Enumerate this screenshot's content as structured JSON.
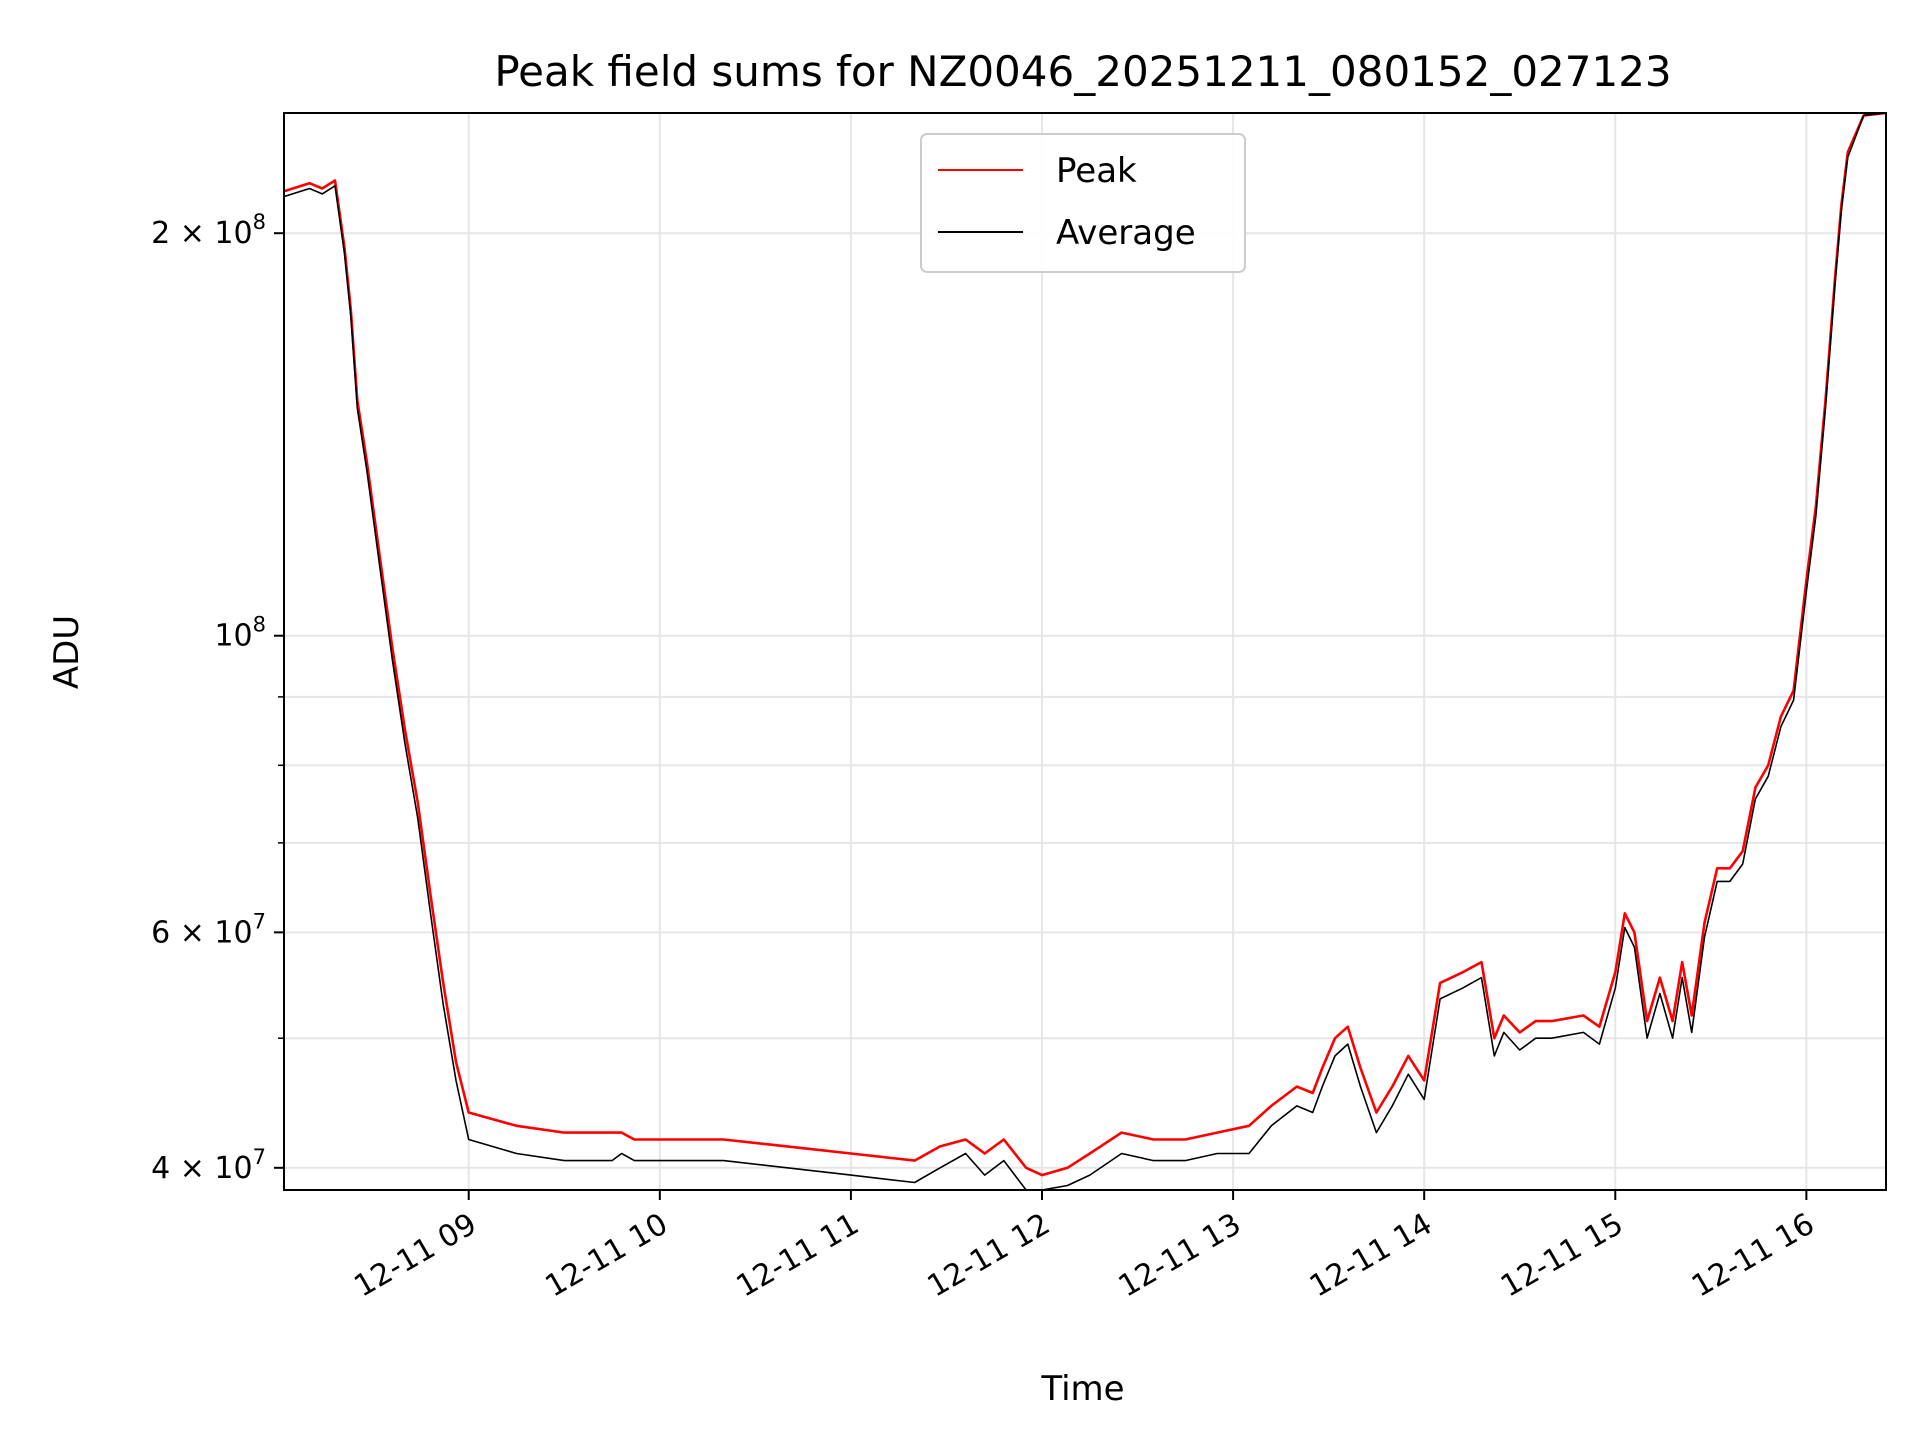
{
  "chart_data": {
    "type": "line",
    "title": "Peak field sums for NZ0046_20251211_080152_027123",
    "xlabel": "Time",
    "ylabel": "ADU",
    "x_axis": "date",
    "y_scale": "log",
    "xlim": [
      "2025-12-11 08:02",
      "2025-12-11 16:25"
    ],
    "ylim": [
      38500000,
      246000000
    ],
    "x_ticks": [
      {
        "value": "2025-12-11 09:00",
        "label": "12-11 09"
      },
      {
        "value": "2025-12-11 10:00",
        "label": "12-11 10"
      },
      {
        "value": "2025-12-11 11:00",
        "label": "12-11 11"
      },
      {
        "value": "2025-12-11 12:00",
        "label": "12-11 12"
      },
      {
        "value": "2025-12-11 13:00",
        "label": "12-11 13"
      },
      {
        "value": "2025-12-11 14:00",
        "label": "12-11 14"
      },
      {
        "value": "2025-12-11 15:00",
        "label": "12-11 15"
      },
      {
        "value": "2025-12-11 16:00",
        "label": "12-11 16"
      }
    ],
    "y_major_ticks": [
      {
        "value": 40000000,
        "base": "4 × 10",
        "exp": "7"
      },
      {
        "value": 60000000,
        "base": "6 × 10",
        "exp": "7"
      },
      {
        "value": 100000000,
        "base": "10",
        "exp": "8"
      },
      {
        "value": 200000000,
        "base": "2 × 10",
        "exp": "8"
      }
    ],
    "y_minor_ticks": [
      50000000,
      70000000,
      80000000,
      90000000
    ],
    "grid": true,
    "legend_position": "upper-center",
    "x": [
      "2025-12-11 08:02",
      "2025-12-11 08:10",
      "2025-12-11 08:14",
      "2025-12-11 08:18",
      "2025-12-11 08:21",
      "2025-12-11 08:23",
      "2025-12-11 08:25",
      "2025-12-11 08:28",
      "2025-12-11 08:32",
      "2025-12-11 08:36",
      "2025-12-11 08:40",
      "2025-12-11 08:44",
      "2025-12-11 08:48",
      "2025-12-11 08:52",
      "2025-12-11 08:56",
      "2025-12-11 09:00",
      "2025-12-11 09:15",
      "2025-12-11 09:30",
      "2025-12-11 09:45",
      "2025-12-11 09:48",
      "2025-12-11 09:52",
      "2025-12-11 10:00",
      "2025-12-11 10:20",
      "2025-12-11 10:40",
      "2025-12-11 11:00",
      "2025-12-11 11:20",
      "2025-12-11 11:28",
      "2025-12-11 11:36",
      "2025-12-11 11:42",
      "2025-12-11 11:48",
      "2025-12-11 11:55",
      "2025-12-11 12:00",
      "2025-12-11 12:08",
      "2025-12-11 12:15",
      "2025-12-11 12:25",
      "2025-12-11 12:35",
      "2025-12-11 12:45",
      "2025-12-11 12:55",
      "2025-12-11 13:05",
      "2025-12-11 13:12",
      "2025-12-11 13:20",
      "2025-12-11 13:25",
      "2025-12-11 13:28",
      "2025-12-11 13:32",
      "2025-12-11 13:36",
      "2025-12-11 13:40",
      "2025-12-11 13:45",
      "2025-12-11 13:50",
      "2025-12-11 13:55",
      "2025-12-11 14:00",
      "2025-12-11 14:05",
      "2025-12-11 14:12",
      "2025-12-11 14:18",
      "2025-12-11 14:22",
      "2025-12-11 14:25",
      "2025-12-11 14:30",
      "2025-12-11 14:35",
      "2025-12-11 14:40",
      "2025-12-11 14:50",
      "2025-12-11 14:55",
      "2025-12-11 15:00",
      "2025-12-11 15:03",
      "2025-12-11 15:06",
      "2025-12-11 15:10",
      "2025-12-11 15:14",
      "2025-12-11 15:18",
      "2025-12-11 15:21",
      "2025-12-11 15:24",
      "2025-12-11 15:28",
      "2025-12-11 15:32",
      "2025-12-11 15:36",
      "2025-12-11 15:40",
      "2025-12-11 15:44",
      "2025-12-11 15:48",
      "2025-12-11 15:52",
      "2025-12-11 15:56",
      "2025-12-11 16:00",
      "2025-12-11 16:03",
      "2025-12-11 16:06",
      "2025-12-11 16:09",
      "2025-12-11 16:11",
      "2025-12-11 16:13",
      "2025-12-11 16:18",
      "2025-12-11 16:25"
    ],
    "series": [
      {
        "name": "Peak",
        "color": "#ff0000",
        "values": [
          215000000,
          218000000,
          216000000,
          219000000,
          195000000,
          175000000,
          150000000,
          135000000,
          115000000,
          98000000,
          85000000,
          75000000,
          64000000,
          55000000,
          48000000,
          44000000,
          43000000,
          42500000,
          42500000,
          42500000,
          42000000,
          42000000,
          42000000,
          41500000,
          41000000,
          40500000,
          41500000,
          42000000,
          41000000,
          42000000,
          40000000,
          39500000,
          40000000,
          41000000,
          42500000,
          42000000,
          42000000,
          42500000,
          43000000,
          44500000,
          46000000,
          45500000,
          47500000,
          50000000,
          51000000,
          47500000,
          44000000,
          46000000,
          48500000,
          46500000,
          55000000,
          56000000,
          57000000,
          50000000,
          52000000,
          50500000,
          51500000,
          51500000,
          52000000,
          51000000,
          56000000,
          62000000,
          60000000,
          51500000,
          55500000,
          51500000,
          57000000,
          52000000,
          61000000,
          67000000,
          67000000,
          69000000,
          77000000,
          80000000,
          87000000,
          91000000,
          110000000,
          125000000,
          150000000,
          185000000,
          210000000,
          230000000,
          245000000,
          246000000
        ]
      },
      {
        "name": "Average",
        "color": "#000000",
        "values": [
          213000000,
          216000000,
          214000000,
          217000000,
          193000000,
          173000000,
          148000000,
          133000000,
          113000000,
          96000000,
          83000000,
          73000000,
          62000000,
          53000000,
          46500000,
          42000000,
          41000000,
          40500000,
          40500000,
          41000000,
          40500000,
          40500000,
          40500000,
          40000000,
          39500000,
          39000000,
          40000000,
          41000000,
          39500000,
          40500000,
          38500000,
          38500000,
          38800000,
          39500000,
          41000000,
          40500000,
          40500000,
          41000000,
          41000000,
          43000000,
          44500000,
          44000000,
          46000000,
          48500000,
          49500000,
          46000000,
          42500000,
          44500000,
          47000000,
          45000000,
          53500000,
          54500000,
          55500000,
          48500000,
          50500000,
          49000000,
          50000000,
          50000000,
          50500000,
          49500000,
          54500000,
          60500000,
          58500000,
          50000000,
          54000000,
          50000000,
          55500000,
          50500000,
          59500000,
          65500000,
          65500000,
          67500000,
          75500000,
          78500000,
          85500000,
          89500000,
          108000000,
          123000000,
          148000000,
          183000000,
          208000000,
          228000000,
          245000000,
          246000000
        ]
      }
    ]
  }
}
